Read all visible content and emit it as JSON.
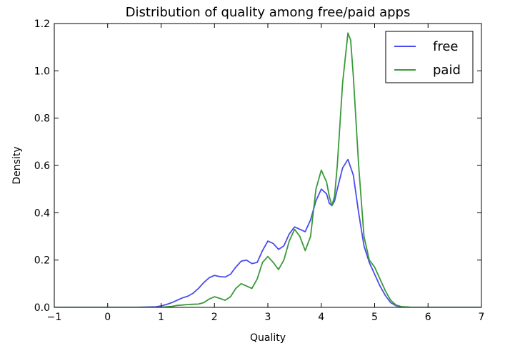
{
  "chart_data": {
    "type": "line",
    "title": "Distribution of quality among free/paid apps",
    "xlabel": "Quality",
    "ylabel": "Density",
    "xlim": [
      -1,
      7
    ],
    "ylim": [
      0,
      1.2
    ],
    "xticks": [
      "−1",
      "0",
      "1",
      "2",
      "3",
      "4",
      "5",
      "6",
      "7"
    ],
    "yticks": [
      "0.0",
      "0.2",
      "0.4",
      "0.6",
      "0.8",
      "1.0",
      "1.2"
    ],
    "grid": false,
    "legend_position": "top-right",
    "series": [
      {
        "name": "free",
        "color": "#4b4bf0",
        "points": [
          [
            -1,
            0
          ],
          [
            0,
            0
          ],
          [
            0.5,
            0
          ],
          [
            0.9,
            0.002
          ],
          [
            1.0,
            0.006
          ],
          [
            1.1,
            0.012
          ],
          [
            1.2,
            0.02
          ],
          [
            1.3,
            0.03
          ],
          [
            1.4,
            0.04
          ],
          [
            1.5,
            0.047
          ],
          [
            1.6,
            0.06
          ],
          [
            1.7,
            0.08
          ],
          [
            1.8,
            0.105
          ],
          [
            1.9,
            0.125
          ],
          [
            2.0,
            0.135
          ],
          [
            2.1,
            0.13
          ],
          [
            2.2,
            0.128
          ],
          [
            2.3,
            0.14
          ],
          [
            2.4,
            0.17
          ],
          [
            2.5,
            0.195
          ],
          [
            2.6,
            0.2
          ],
          [
            2.7,
            0.185
          ],
          [
            2.8,
            0.19
          ],
          [
            2.9,
            0.24
          ],
          [
            3.0,
            0.28
          ],
          [
            3.1,
            0.27
          ],
          [
            3.2,
            0.245
          ],
          [
            3.3,
            0.26
          ],
          [
            3.4,
            0.31
          ],
          [
            3.5,
            0.34
          ],
          [
            3.6,
            0.33
          ],
          [
            3.7,
            0.32
          ],
          [
            3.8,
            0.37
          ],
          [
            3.9,
            0.45
          ],
          [
            4.0,
            0.5
          ],
          [
            4.1,
            0.48
          ],
          [
            4.15,
            0.44
          ],
          [
            4.2,
            0.43
          ],
          [
            4.25,
            0.45
          ],
          [
            4.3,
            0.5
          ],
          [
            4.4,
            0.59
          ],
          [
            4.5,
            0.625
          ],
          [
            4.6,
            0.56
          ],
          [
            4.7,
            0.4
          ],
          [
            4.8,
            0.26
          ],
          [
            4.9,
            0.19
          ],
          [
            5.0,
            0.14
          ],
          [
            5.1,
            0.09
          ],
          [
            5.2,
            0.05
          ],
          [
            5.3,
            0.02
          ],
          [
            5.4,
            0.007
          ],
          [
            5.5,
            0.002
          ],
          [
            5.7,
            0
          ],
          [
            6.0,
            0
          ],
          [
            7.0,
            0
          ]
        ]
      },
      {
        "name": "paid",
        "color": "#3a9a3a",
        "points": [
          [
            -1,
            0
          ],
          [
            0,
            0
          ],
          [
            1.0,
            0
          ],
          [
            1.1,
            0.002
          ],
          [
            1.2,
            0.004
          ],
          [
            1.3,
            0.008
          ],
          [
            1.4,
            0.01
          ],
          [
            1.5,
            0.012
          ],
          [
            1.6,
            0.013
          ],
          [
            1.7,
            0.014
          ],
          [
            1.8,
            0.02
          ],
          [
            1.9,
            0.035
          ],
          [
            2.0,
            0.045
          ],
          [
            2.1,
            0.038
          ],
          [
            2.2,
            0.03
          ],
          [
            2.3,
            0.045
          ],
          [
            2.4,
            0.08
          ],
          [
            2.5,
            0.1
          ],
          [
            2.6,
            0.09
          ],
          [
            2.7,
            0.08
          ],
          [
            2.8,
            0.12
          ],
          [
            2.9,
            0.19
          ],
          [
            3.0,
            0.215
          ],
          [
            3.1,
            0.19
          ],
          [
            3.2,
            0.16
          ],
          [
            3.3,
            0.2
          ],
          [
            3.4,
            0.28
          ],
          [
            3.5,
            0.33
          ],
          [
            3.6,
            0.3
          ],
          [
            3.7,
            0.24
          ],
          [
            3.8,
            0.3
          ],
          [
            3.9,
            0.5
          ],
          [
            4.0,
            0.58
          ],
          [
            4.1,
            0.53
          ],
          [
            4.15,
            0.47
          ],
          [
            4.2,
            0.43
          ],
          [
            4.25,
            0.47
          ],
          [
            4.3,
            0.6
          ],
          [
            4.4,
            0.95
          ],
          [
            4.5,
            1.16
          ],
          [
            4.55,
            1.13
          ],
          [
            4.6,
            0.98
          ],
          [
            4.7,
            0.6
          ],
          [
            4.8,
            0.3
          ],
          [
            4.9,
            0.2
          ],
          [
            5.0,
            0.17
          ],
          [
            5.1,
            0.12
          ],
          [
            5.2,
            0.07
          ],
          [
            5.3,
            0.03
          ],
          [
            5.4,
            0.01
          ],
          [
            5.5,
            0.003
          ],
          [
            5.7,
            0
          ],
          [
            6.0,
            0
          ],
          [
            7.0,
            0
          ]
        ]
      }
    ]
  }
}
